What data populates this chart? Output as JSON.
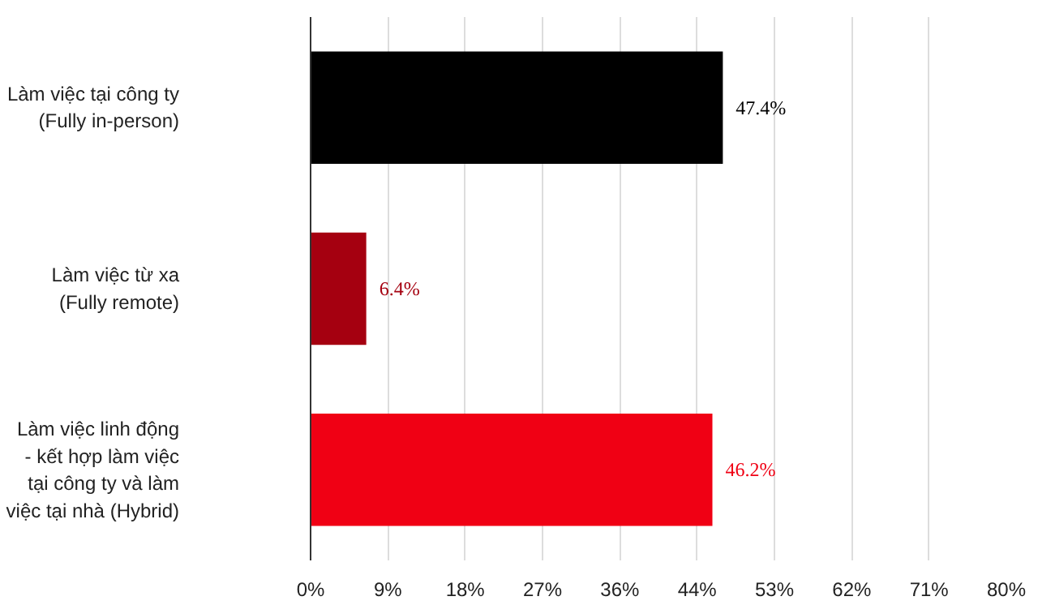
{
  "chart_data": {
    "type": "bar",
    "orientation": "horizontal",
    "categories": [
      "Làm việc tại công ty\n(Fully in-person)",
      "Làm việc từ xa\n(Fully remote)",
      "Làm việc linh động\n- kết hợp làm việc\ntại công ty và làm\nviệc tại nhà (Hybrid)"
    ],
    "values": [
      47.4,
      6.4,
      46.2
    ],
    "colors": [
      "#000000",
      "#a50010",
      "#f00014"
    ],
    "value_labels": [
      "47.4%",
      "6.4%",
      "46.2%"
    ],
    "xlim": [
      0,
      80
    ],
    "xticks": [
      {
        "value": 0,
        "label": "0%"
      },
      {
        "value": 8.889,
        "label": "9%"
      },
      {
        "value": 17.778,
        "label": "18%"
      },
      {
        "value": 26.667,
        "label": "27%"
      },
      {
        "value": 35.556,
        "label": "36%"
      },
      {
        "value": 44.444,
        "label": "44%"
      },
      {
        "value": 53.333,
        "label": "53%"
      },
      {
        "value": 62.222,
        "label": "62%"
      },
      {
        "value": 71.111,
        "label": "71%"
      },
      {
        "value": 80,
        "label": "80%"
      }
    ],
    "grid": "x"
  }
}
